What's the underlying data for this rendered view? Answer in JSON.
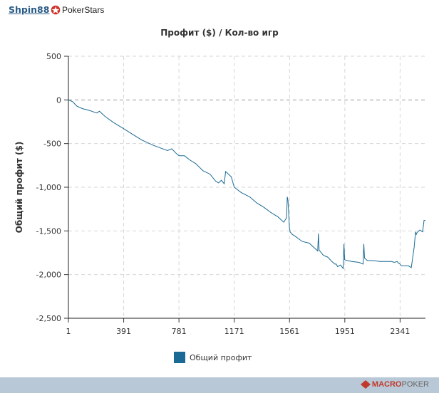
{
  "header": {
    "player_name": "Shpin88",
    "site_name": "PokerStars"
  },
  "footer": {
    "brand_part1": "MACRO",
    "brand_part2": "POKER"
  },
  "colors": {
    "series": "#1a6a95",
    "link": "#2a5b86",
    "footer_bg": "#b9c8d6"
  },
  "chart_data": {
    "type": "line",
    "title": "Профит ($) / Кол-во игр",
    "ylabel": "Общий профит ($)",
    "xlabel": "",
    "xlim": [
      1,
      2520
    ],
    "ylim": [
      -2500,
      500
    ],
    "x_ticks": [
      1,
      391,
      781,
      1171,
      1561,
      1951,
      2341
    ],
    "x_tick_labels": [
      "1",
      "391",
      "781",
      "1171",
      "1561",
      "1951",
      "2341"
    ],
    "y_ticks": [
      500,
      0,
      -500,
      -1000,
      -1500,
      -2000,
      -2500
    ],
    "y_tick_labels": [
      "500",
      "0",
      "-500",
      "-1,000",
      "-1,500",
      "-2,000",
      "-2,500"
    ],
    "grid": true,
    "legend_position": "bottom",
    "series": [
      {
        "name": "Общий профит",
        "x": [
          1,
          30,
          60,
          100,
          150,
          200,
          220,
          260,
          320,
          391,
          450,
          520,
          560,
          600,
          650,
          700,
          730,
          760,
          781,
          820,
          860,
          900,
          950,
          1000,
          1040,
          1060,
          1080,
          1100,
          1110,
          1130,
          1150,
          1171,
          1220,
          1280,
          1330,
          1380,
          1430,
          1480,
          1520,
          1540,
          1545,
          1550,
          1560,
          1565,
          1580,
          1600,
          1650,
          1700,
          1740,
          1760,
          1765,
          1770,
          1800,
          1830,
          1860,
          1880,
          1890,
          1900,
          1920,
          1940,
          1945,
          1950,
          1970,
          2000,
          2050,
          2080,
          2085,
          2090,
          2110,
          2150,
          2200,
          2250,
          2280,
          2300,
          2320,
          2330,
          2335,
          2350,
          2380,
          2400,
          2420,
          2440,
          2450,
          2455,
          2460,
          2480,
          2500,
          2510,
          2520
        ],
        "y": [
          0,
          -20,
          -70,
          -100,
          -120,
          -150,
          -130,
          -190,
          -260,
          -330,
          -390,
          -460,
          -490,
          -520,
          -550,
          -580,
          -560,
          -610,
          -640,
          -640,
          -690,
          -730,
          -810,
          -850,
          -930,
          -950,
          -920,
          -960,
          -820,
          -850,
          -880,
          -1000,
          -1060,
          -1110,
          -1180,
          -1230,
          -1290,
          -1340,
          -1400,
          -1350,
          -1110,
          -1150,
          -1460,
          -1510,
          -1540,
          -1560,
          -1620,
          -1640,
          -1700,
          -1730,
          -1530,
          -1720,
          -1780,
          -1800,
          -1850,
          -1880,
          -1880,
          -1910,
          -1890,
          -1930,
          -1650,
          -1830,
          -1840,
          -1850,
          -1860,
          -1880,
          -1650,
          -1810,
          -1840,
          -1840,
          -1850,
          -1850,
          -1850,
          -1860,
          -1850,
          -1870,
          -1870,
          -1900,
          -1900,
          -1900,
          -1920,
          -1690,
          -1510,
          -1540,
          -1520,
          -1490,
          -1510,
          -1380,
          -1380
        ]
      }
    ]
  }
}
